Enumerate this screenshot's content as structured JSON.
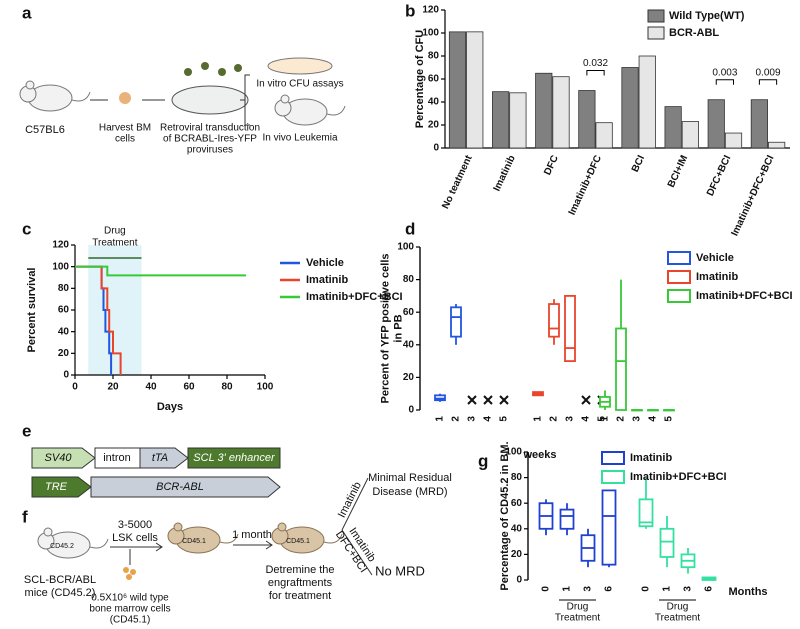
{
  "figure_a": {
    "panel": "a",
    "mouse": "C57BL6",
    "harvest": [
      "Harvest BM",
      "cells"
    ],
    "transduction": [
      "Retroviral transduction",
      "of BCRABL-Ires-YFP",
      "proviruses"
    ],
    "in_vitro": "In vitro CFU assays",
    "in_vivo": "In vivo Leukemia"
  },
  "figure_e": {
    "panel": "e",
    "row1": [
      "SV40",
      "intron",
      "tTA",
      "SCL 3' enhancer"
    ],
    "row2": [
      "TRE",
      "BCR-ABL"
    ]
  },
  "figure_f": {
    "panel": "f",
    "donor_mouse": "CD45.2",
    "donor_label": [
      "SCL-BCR/ABL",
      "mice (CD45.2)"
    ],
    "lsk": [
      "3-5000",
      "LSK cells"
    ],
    "bm": [
      "0.5X10⁶ wild type",
      "bone marrow cells",
      "(CD45.1)"
    ],
    "recipient": "CD45.1",
    "wait": "1 month",
    "recipient2": "CD45.1",
    "determine": [
      "Detremine the",
      "engraftments",
      "for treatment"
    ],
    "arm1": "Imatinib",
    "arm2": [
      "Imatinib",
      "DFC+BCI"
    ],
    "outcome1": [
      "Minimal Residual",
      "Disease (MRD)"
    ],
    "outcome2": "No MRD"
  },
  "chart_data": [
    {
      "panel": "b",
      "type": "bar",
      "ylabel": "Percentage of CFU",
      "categories": [
        "No teatment",
        "Imatinib",
        "DFC",
        "Imatinib+DFC",
        "BCI",
        "BCI+IM",
        "DFC+BCI",
        "Imatinib+DFC+BCI"
      ],
      "series": [
        {
          "name": "Wild Type(WT)",
          "color": "#808080",
          "values": [
            101,
            49,
            65,
            50,
            70,
            36,
            42,
            42
          ]
        },
        {
          "name": "BCR-ABL",
          "color": "#e6e6e6",
          "values": [
            101,
            48,
            62,
            22,
            80,
            23,
            13,
            5
          ]
        }
      ],
      "ylim": [
        0,
        120
      ],
      "yticks": [
        0,
        20,
        40,
        60,
        80,
        100,
        120
      ],
      "annotations": [
        "0.032",
        "0.003",
        "0.009"
      ]
    },
    {
      "panel": "c",
      "type": "line",
      "xlabel": "Days",
      "ylabel": "Percent survival",
      "xlim": [
        0,
        100
      ],
      "xticks": [
        0,
        20,
        40,
        60,
        80,
        100
      ],
      "ylim": [
        0,
        120
      ],
      "yticks": [
        0,
        20,
        40,
        60,
        80,
        100,
        120
      ],
      "span": {
        "x": [
          7,
          35
        ],
        "label": [
          "Drug",
          "Treatment"
        ]
      },
      "series": [
        {
          "name": "Vehicle",
          "color": "#2255e0",
          "x": [
            0,
            14,
            14,
            15,
            15,
            16,
            16,
            18,
            18,
            19,
            19
          ],
          "values": [
            100,
            100,
            80,
            80,
            60,
            60,
            40,
            40,
            20,
            20,
            0
          ]
        },
        {
          "name": "Imatinib",
          "color": "#e8452c",
          "x": [
            0,
            14,
            14,
            17,
            17,
            18,
            18,
            20,
            20,
            24,
            24
          ],
          "values": [
            100,
            100,
            80,
            80,
            60,
            60,
            40,
            40,
            20,
            20,
            0
          ]
        },
        {
          "name": "Imatinib+DFC+BCI",
          "color": "#38c838",
          "x": [
            0,
            17,
            17,
            90
          ],
          "values": [
            100,
            100,
            92,
            92
          ]
        }
      ]
    },
    {
      "panel": "d",
      "type": "box",
      "xlabel": "weeks",
      "ylabel": [
        "Percent of YFP positive cells",
        "in PB"
      ],
      "ylim": [
        0,
        100
      ],
      "yticks": [
        0,
        20,
        40,
        60,
        80,
        100
      ],
      "categories": [
        "1",
        "2",
        "3",
        "4",
        "5"
      ],
      "series": [
        {
          "name": "Vehicle",
          "color": "#2255e0",
          "min": [
            5,
            40,
            null,
            null,
            null
          ],
          "q1": [
            6,
            45,
            null,
            null,
            null
          ],
          "median": [
            7,
            57,
            null,
            null,
            null
          ],
          "q3": [
            9,
            63,
            null,
            null,
            null
          ],
          "max": [
            10,
            65,
            null,
            null,
            null
          ]
        },
        {
          "name": "Imatinib",
          "color": "#e8452c",
          "min": [
            9,
            40,
            30,
            null,
            null
          ],
          "q1": [
            9,
            45,
            30,
            null,
            null
          ],
          "median": [
            10,
            50,
            38,
            null,
            null
          ],
          "q3": [
            11,
            65,
            70,
            null,
            null
          ],
          "max": [
            11,
            68,
            70,
            null,
            null
          ]
        },
        {
          "name": "Imatinib+DFC+BCI",
          "color": "#38c838",
          "min": [
            0,
            0,
            0,
            0,
            0
          ],
          "q1": [
            2,
            0,
            0,
            0,
            0
          ],
          "median": [
            5,
            30,
            0,
            0,
            0
          ],
          "q3": [
            8,
            50,
            0,
            0,
            0
          ],
          "max": [
            12,
            80,
            0,
            0,
            0
          ]
        }
      ]
    },
    {
      "panel": "g",
      "type": "box",
      "xlabel": "Months",
      "ylabel": [
        "Percentage of CD45.2 in BM."
      ],
      "ylim": [
        0,
        100
      ],
      "yticks": [
        0,
        20,
        40,
        60,
        80,
        100
      ],
      "categories": [
        "0",
        "1",
        "3",
        "6"
      ],
      "treatment_label": [
        "Drug",
        "Treatment"
      ],
      "series": [
        {
          "name": "Imatinib",
          "color": "#2040d0",
          "min": [
            35,
            35,
            10,
            10
          ],
          "q1": [
            40,
            40,
            15,
            12
          ],
          "median": [
            50,
            50,
            25,
            50
          ],
          "q3": [
            60,
            55,
            35,
            70
          ],
          "max": [
            63,
            60,
            40,
            70
          ]
        },
        {
          "name": "Imatinib+DFC+BCI",
          "color": "#33e0a0",
          "min": [
            40,
            10,
            5,
            0
          ],
          "q1": [
            42,
            18,
            10,
            0
          ],
          "median": [
            45,
            30,
            15,
            1
          ],
          "q3": [
            63,
            40,
            20,
            2
          ],
          "max": [
            80,
            50,
            25,
            2
          ]
        }
      ]
    }
  ]
}
